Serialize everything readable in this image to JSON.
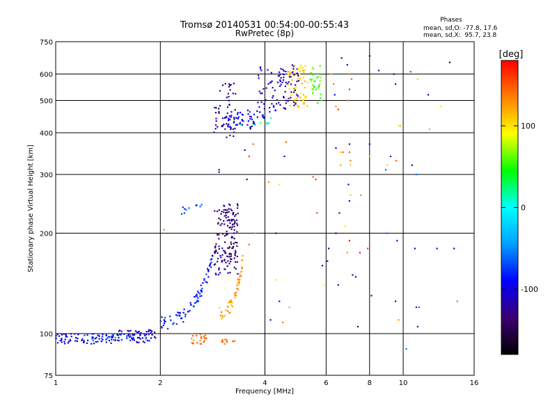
{
  "chart_data": {
    "type": "scatter",
    "title": "Tromsø 20140531 00:54:00-00:55:43",
    "subtitle": "RwPretec (8p)",
    "xlabel": "Frequency [MHz]",
    "ylabel": "Stationary phase Virtual Height [km]",
    "x_scale": "log",
    "y_scale": "log",
    "xlim": [
      1,
      16
    ],
    "ylim": [
      75,
      750
    ],
    "x_ticks": [
      1,
      2,
      4,
      6,
      8,
      10,
      16
    ],
    "x_tick_labels": [
      "1",
      "2",
      "4",
      "6",
      "8",
      "10",
      "16"
    ],
    "y_ticks": [
      75,
      100,
      200,
      300,
      400,
      500,
      600,
      750
    ],
    "y_tick_labels": [
      "75",
      "100",
      "200",
      "300",
      "400",
      "500",
      "600",
      "750"
    ],
    "grid": true,
    "info": {
      "title": "Phases",
      "line1": "mean, sd,O: -77.8, 17.6",
      "line2": "mean, sd,X:  95.7, 23.8"
    },
    "colorbar": {
      "label": "[deg]",
      "range": [
        -180,
        180
      ],
      "ticks": [
        100,
        0,
        -100
      ],
      "tick_labels": [
        "100",
        "0",
        "-100"
      ],
      "colors": [
        "#000000",
        "#3c0070",
        "#0000ff",
        "#00a0ff",
        "#00ffff",
        "#00ff00",
        "#ffff00",
        "#ff8000",
        "#ff0000"
      ]
    },
    "series": [
      {
        "clusters": [
          {
            "f": [
              1.0,
              1.5
            ],
            "h": [
              93,
              100
            ],
            "phase": -100,
            "n": 70
          },
          {
            "f": [
              1.5,
              1.95
            ],
            "h": [
              94,
              103
            ],
            "phase": -112,
            "n": 60
          },
          {
            "f": [
              1.2,
              1.85
            ],
            "h": [
              95,
              100
            ],
            "phase": -60,
            "n": 25
          },
          {
            "f": [
              2.0,
              2.85
            ],
            "h": [
              108,
              170
            ],
            "phase": -85,
            "n": 80,
            "curve": "rise"
          },
          {
            "f": [
              2.3,
              2.65
            ],
            "h": [
              225,
              245
            ],
            "phase": -70,
            "n": 10
          },
          {
            "f": [
              2.85,
              3.35
            ],
            "h": [
              150,
              245
            ],
            "phase": -128,
            "n": 150
          },
          {
            "f": [
              3.0,
              3.3
            ],
            "h": [
              165,
              190
            ],
            "phase": -160,
            "n": 10
          },
          {
            "f": [
              2.95,
              3.45
            ],
            "h": [
              115,
              165
            ],
            "phase": 125,
            "n": 50,
            "curve": "rise"
          },
          {
            "f": [
              2.45,
              2.75
            ],
            "h": [
              93,
              100
            ],
            "phase": 140,
            "n": 25
          },
          {
            "f": [
              3.0,
              3.3
            ],
            "h": [
              93,
              96
            ],
            "phase": 140,
            "n": 12
          },
          {
            "f": [
              2.85,
              3.3
            ],
            "h": [
              380,
              570
            ],
            "phase": -125,
            "n": 45
          },
          {
            "f": [
              3.0,
              4.0
            ],
            "h": [
              410,
              470
            ],
            "phase": -95,
            "n": 70
          },
          {
            "f": [
              3.8,
              4.6
            ],
            "h": [
              460,
              630
            ],
            "phase": -105,
            "n": 60
          },
          {
            "f": [
              4.5,
              5.0
            ],
            "h": [
              470,
              640
            ],
            "phase": -125,
            "n": 40
          },
          {
            "f": [
              4.65,
              5.3
            ],
            "h": [
              480,
              640
            ],
            "phase": 105,
            "n": 60
          },
          {
            "f": [
              5.4,
              5.85
            ],
            "h": [
              490,
              640
            ],
            "phase": 60,
            "n": 35
          },
          {
            "f": [
              3.3,
              4.2
            ],
            "h": [
              420,
              450
            ],
            "phase": 20,
            "n": 8
          }
        ],
        "points": [
          {
            "f": 2.95,
            "h": 310,
            "phase": -130
          },
          {
            "f": 2.95,
            "h": 305,
            "phase": -125
          },
          {
            "f": 2.05,
            "h": 205,
            "phase": 140
          },
          {
            "f": 3.75,
            "h": 200,
            "phase": 130
          },
          {
            "f": 3.6,
            "h": 185,
            "phase": 145
          },
          {
            "f": 3.55,
            "h": 290,
            "phase": -110
          },
          {
            "f": 3.7,
            "h": 370,
            "phase": 150
          },
          {
            "f": 3.5,
            "h": 355,
            "phase": -120
          },
          {
            "f": 3.6,
            "h": 340,
            "phase": 160
          },
          {
            "f": 4.1,
            "h": 285,
            "phase": 130
          },
          {
            "f": 4.4,
            "h": 280,
            "phase": 100
          },
          {
            "f": 4.3,
            "h": 200,
            "phase": -130
          },
          {
            "f": 4.55,
            "h": 340,
            "phase": -110
          },
          {
            "f": 4.6,
            "h": 375,
            "phase": 150
          },
          {
            "f": 4.3,
            "h": 145,
            "phase": 80
          },
          {
            "f": 4.4,
            "h": 125,
            "phase": -95
          },
          {
            "f": 4.7,
            "h": 120,
            "phase": 120
          },
          {
            "f": 4.15,
            "h": 110,
            "phase": -120
          },
          {
            "f": 4.5,
            "h": 108,
            "phase": 140
          },
          {
            "f": 5.5,
            "h": 295,
            "phase": 150
          },
          {
            "f": 5.6,
            "h": 290,
            "phase": 160
          },
          {
            "f": 5.65,
            "h": 230,
            "phase": 160
          },
          {
            "f": 6.1,
            "h": 180,
            "phase": -110
          },
          {
            "f": 6.05,
            "h": 165,
            "phase": -115
          },
          {
            "f": 5.85,
            "h": 160,
            "phase": -95
          },
          {
            "f": 5.9,
            "h": 140,
            "phase": 90
          },
          {
            "f": 6.2,
            "h": 600,
            "phase": 120
          },
          {
            "f": 6.3,
            "h": 560,
            "phase": 140
          },
          {
            "f": 6.35,
            "h": 520,
            "phase": -95
          },
          {
            "f": 6.4,
            "h": 480,
            "phase": 130
          },
          {
            "f": 6.5,
            "h": 470,
            "phase": 160
          },
          {
            "f": 6.4,
            "h": 360,
            "phase": -110
          },
          {
            "f": 6.6,
            "h": 350,
            "phase": 110
          },
          {
            "f": 6.6,
            "h": 320,
            "phase": 120
          },
          {
            "f": 6.55,
            "h": 230,
            "phase": -120
          },
          {
            "f": 6.8,
            "h": 210,
            "phase": 100
          },
          {
            "f": 6.7,
            "h": 350,
            "phase": 150
          },
          {
            "f": 6.4,
            "h": 200,
            "phase": -140
          },
          {
            "f": 6.5,
            "h": 140,
            "phase": -130
          },
          {
            "f": 6.65,
            "h": 670,
            "phase": -120
          },
          {
            "f": 6.9,
            "h": 640,
            "phase": -100
          },
          {
            "f": 7.0,
            "h": 600,
            "phase": 140
          },
          {
            "f": 7.1,
            "h": 580,
            "phase": 150
          },
          {
            "f": 7.0,
            "h": 540,
            "phase": 160
          },
          {
            "f": 6.9,
            "h": 500,
            "phase": 140
          },
          {
            "f": 7.0,
            "h": 370,
            "phase": -110
          },
          {
            "f": 7.0,
            "h": 350,
            "phase": 150
          },
          {
            "f": 7.05,
            "h": 330,
            "phase": 140
          },
          {
            "f": 7.05,
            "h": 320,
            "phase": 110
          },
          {
            "f": 6.95,
            "h": 280,
            "phase": -115
          },
          {
            "f": 7.05,
            "h": 260,
            "phase": 110
          },
          {
            "f": 7.0,
            "h": 250,
            "phase": -120
          },
          {
            "f": 6.9,
            "h": 200,
            "phase": 150
          },
          {
            "f": 7.0,
            "h": 190,
            "phase": 180
          },
          {
            "f": 6.9,
            "h": 175,
            "phase": 130
          },
          {
            "f": 7.15,
            "h": 150,
            "phase": -120
          },
          {
            "f": 7.3,
            "h": 148,
            "phase": -110
          },
          {
            "f": 7.5,
            "h": 175,
            "phase": 170
          },
          {
            "f": 7.4,
            "h": 105,
            "phase": -125
          },
          {
            "f": 7.55,
            "h": 260,
            "phase": 130
          },
          {
            "f": 7.9,
            "h": 180,
            "phase": 160
          },
          {
            "f": 8.0,
            "h": 680,
            "phase": -105
          },
          {
            "f": 8.0,
            "h": 370,
            "phase": -115
          },
          {
            "f": 8.0,
            "h": 340,
            "phase": 120
          },
          {
            "f": 8.1,
            "h": 130,
            "phase": -120
          },
          {
            "f": 8.0,
            "h": 590,
            "phase": 130
          },
          {
            "f": 8.5,
            "h": 615,
            "phase": -110
          },
          {
            "f": 9.2,
            "h": 340,
            "phase": -110
          },
          {
            "f": 9.0,
            "h": 320,
            "phase": 110
          },
          {
            "f": 8.9,
            "h": 310,
            "phase": -60
          },
          {
            "f": 8.95,
            "h": 200,
            "phase": -60
          },
          {
            "f": 9.6,
            "h": 190,
            "phase": -120
          },
          {
            "f": 9.5,
            "h": 125,
            "phase": -110
          },
          {
            "f": 9.7,
            "h": 110,
            "phase": 130
          },
          {
            "f": 9.4,
            "h": 600,
            "phase": -110
          },
          {
            "f": 9.5,
            "h": 560,
            "phase": -100
          },
          {
            "f": 9.55,
            "h": 330,
            "phase": 150
          },
          {
            "f": 9.7,
            "h": 420,
            "phase": 90
          },
          {
            "f": 9.8,
            "h": 420,
            "phase": 120
          },
          {
            "f": 10.5,
            "h": 610,
            "phase": -60
          },
          {
            "f": 10.6,
            "h": 320,
            "phase": -100
          },
          {
            "f": 10.9,
            "h": 300,
            "phase": -60
          },
          {
            "f": 11.0,
            "h": 580,
            "phase": 110
          },
          {
            "f": 10.2,
            "h": 90,
            "phase": -60
          },
          {
            "f": 10.8,
            "h": 180,
            "phase": -110
          },
          {
            "f": 10.9,
            "h": 120,
            "phase": -80
          },
          {
            "f": 11.1,
            "h": 120,
            "phase": 170
          },
          {
            "f": 11.0,
            "h": 105,
            "phase": -120
          },
          {
            "f": 11.8,
            "h": 520,
            "phase": -110
          },
          {
            "f": 11.9,
            "h": 410,
            "phase": 60
          },
          {
            "f": 12.5,
            "h": 180,
            "phase": -100
          },
          {
            "f": 12.8,
            "h": 480,
            "phase": 100
          },
          {
            "f": 13.6,
            "h": 650,
            "phase": -160
          },
          {
            "f": 14.0,
            "h": 180,
            "phase": -110
          },
          {
            "f": 14.3,
            "h": 125,
            "phase": 140
          }
        ]
      }
    ]
  }
}
